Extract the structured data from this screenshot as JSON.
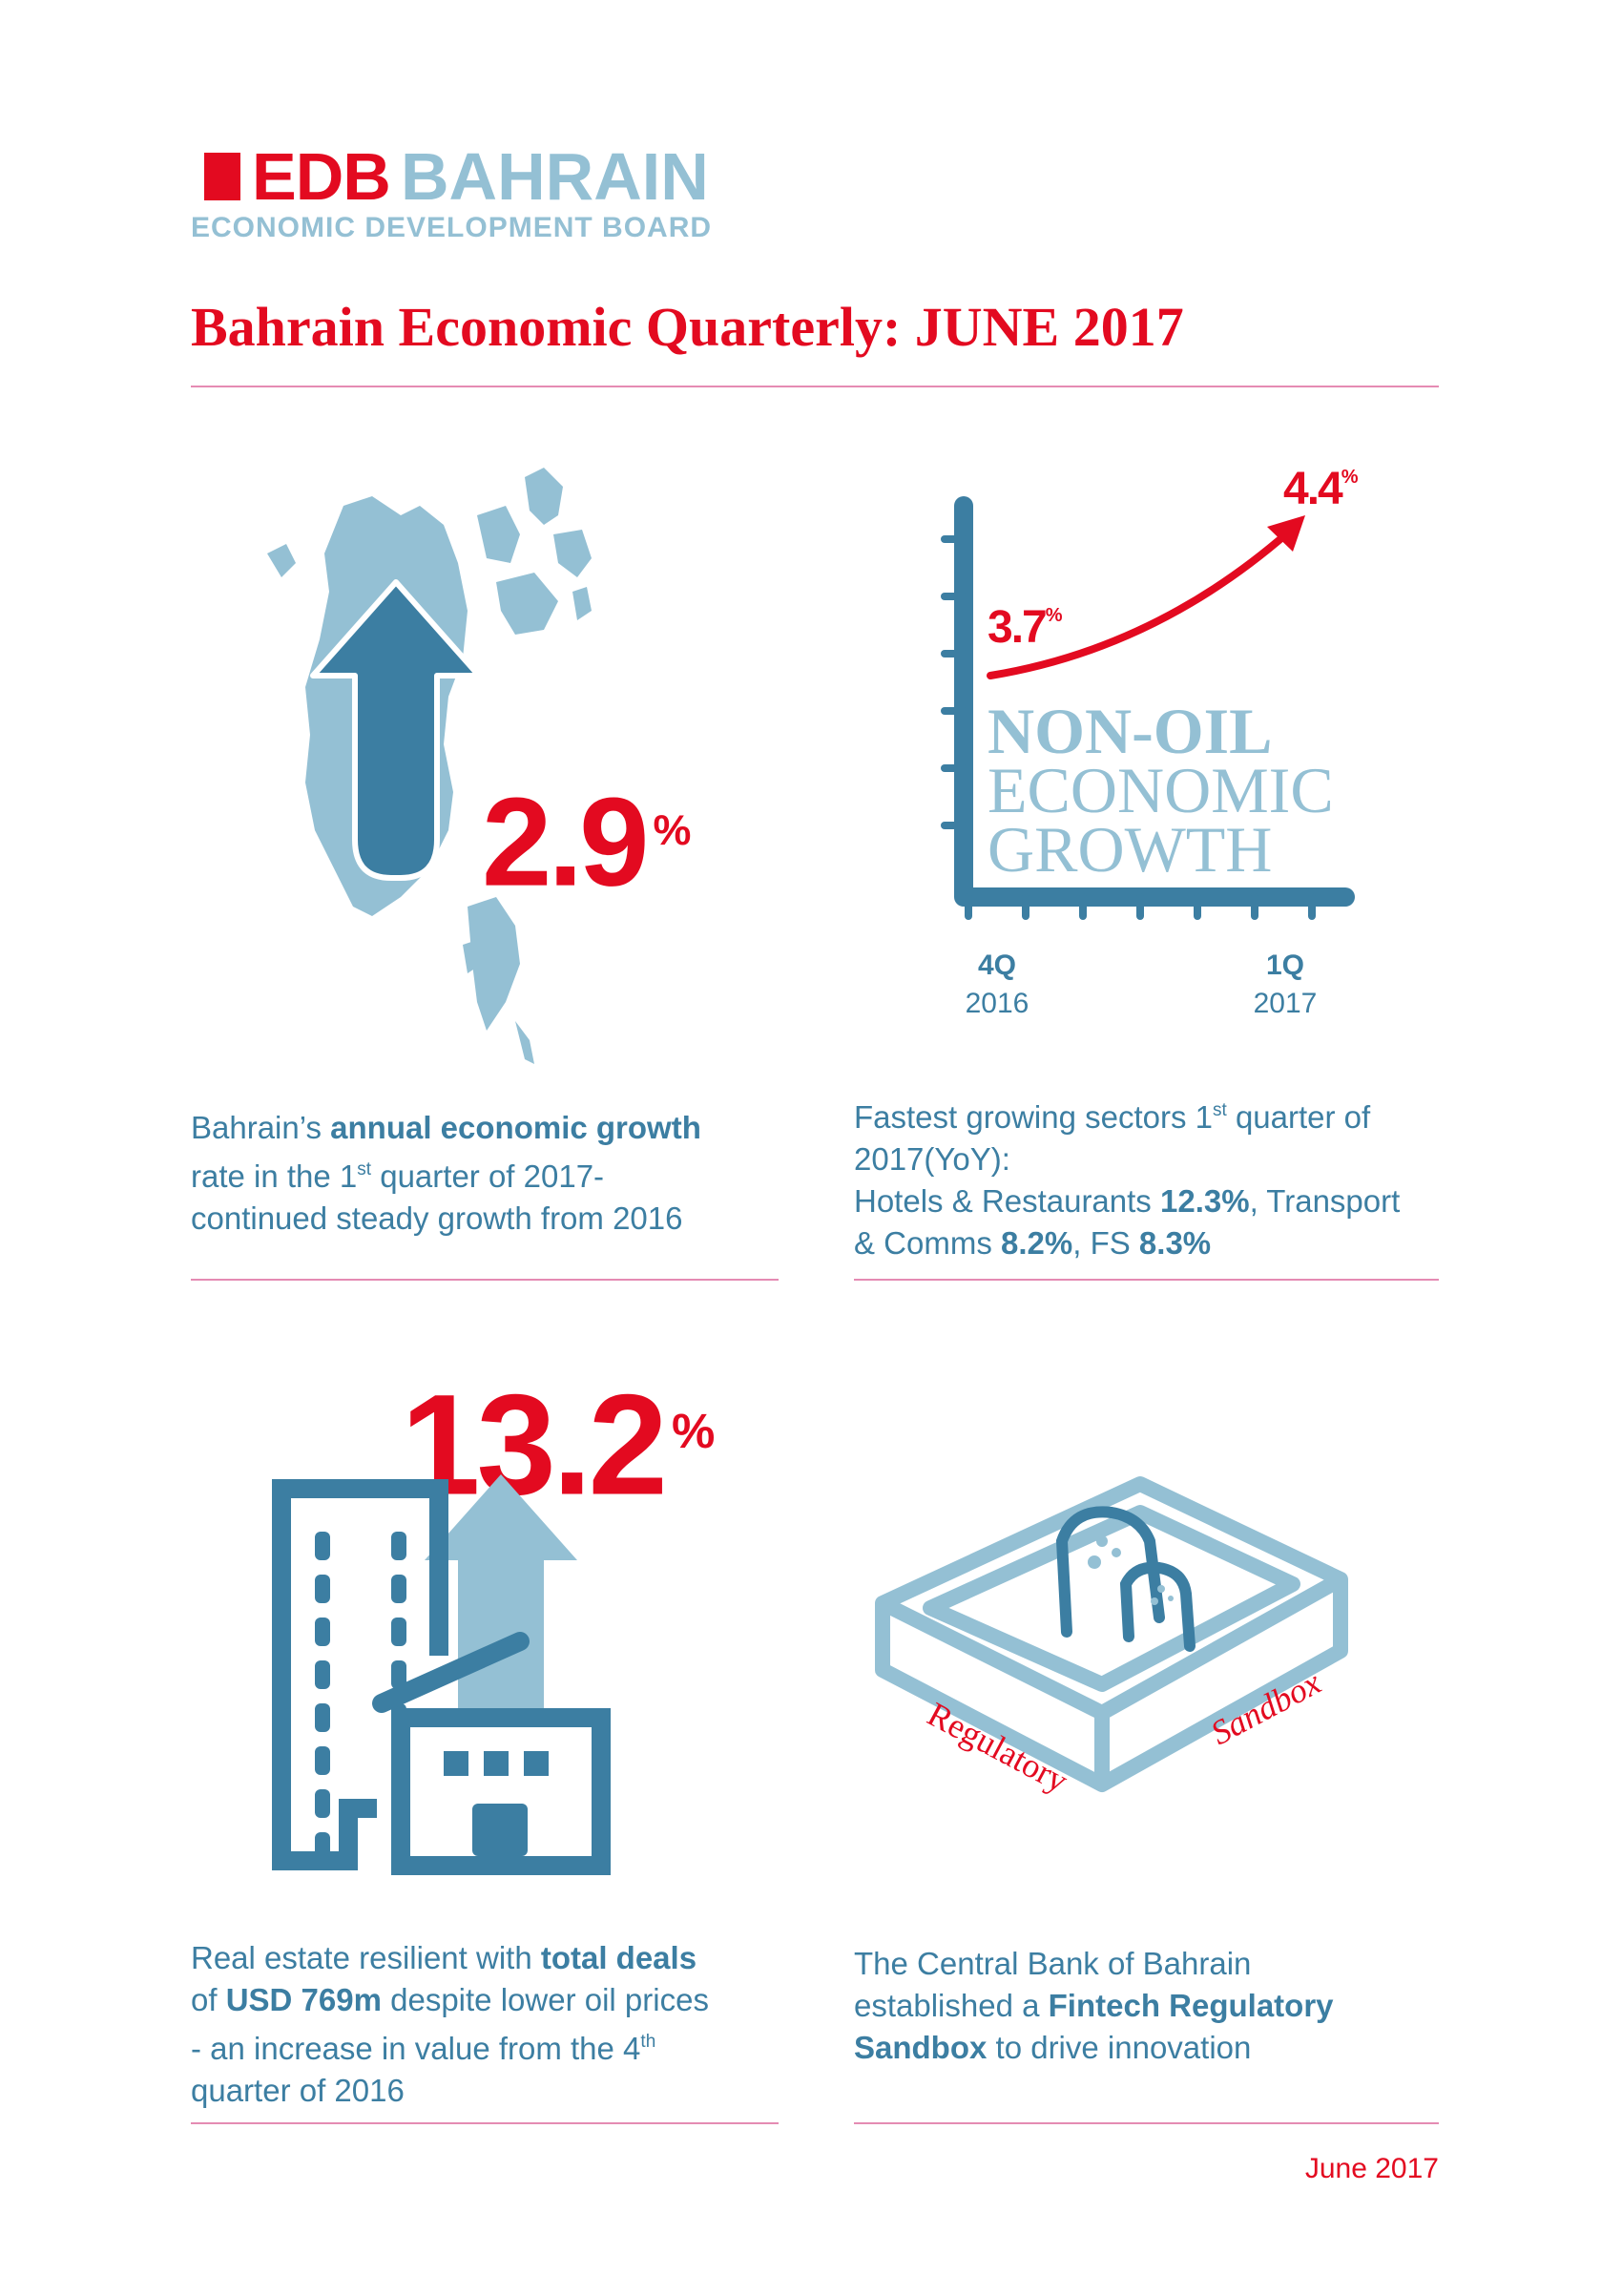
{
  "logo": {
    "edb": "EDB",
    "bahrain": "BAHRAIN",
    "subtitle": "ECONOMIC DEVELOPMENT BOARD",
    "icon": "bahrain-flag-serrated-icon"
  },
  "title": "Bahrain Economic Quarterly: JUNE 2017",
  "colors": {
    "red": "#e30a20",
    "blue": "#3c7ea2",
    "light_blue": "#94c0d4",
    "rule_pink": "#e58bb3"
  },
  "panel_growth": {
    "value": "2.9",
    "unit": "%",
    "icon": "bahrain-map-up-arrow-icon",
    "desc_pre": "Bahrain’s ",
    "desc_bold": "annual economic growth",
    "desc_line2_pre": "rate in the 1",
    "desc_sup": "st",
    "desc_line2_post": " quarter of 2017-",
    "desc_line3": "continued steady growth from 2016"
  },
  "panel_nonoil": {
    "label_bold": "NON-OIL",
    "label_line2": "ECONOMIC",
    "label_line3": "GROWTH",
    "start_value": "3.7",
    "end_value": "4.4",
    "unit": "%",
    "x_start_q": "4Q",
    "x_start_year": "2016",
    "x_end_q": "1Q",
    "x_end_year": "2017",
    "desc_line1_pre": "Fastest growing sectors 1",
    "desc_sup": "st",
    "desc_line1_post": " quarter of",
    "desc_line2": "2017(YoY):",
    "sector1_name": "Hotels & Restaurants ",
    "sector1_value": "12.3%",
    "sector2_name": ", Transport",
    "sector2_name_cont": "& Comms ",
    "sector2_value": "8.2%",
    "sector3_name": ", FS ",
    "sector3_value": "8.3%"
  },
  "panel_realestate": {
    "value": "13.2",
    "unit": "%",
    "icon": "buildings-up-arrow-icon",
    "desc_pre": "Real estate resilient with ",
    "desc_bold1": "total deals",
    "desc_line2_pre": "of ",
    "desc_bold2": "USD 769m",
    "desc_line2_post": " despite lower oil prices",
    "desc_line3": "- an increase in value from the 4",
    "desc_sup": "th",
    "desc_line4": "quarter of 2016"
  },
  "panel_sandbox": {
    "icon": "sandbox-icon",
    "box_label1": "Regulatory",
    "box_label2": "Sandbox",
    "desc_line1": "The Central Bank of Bahrain",
    "desc_line2_pre": "established a ",
    "desc_bold1": "Fintech Regulatory",
    "desc_bold2": "Sandbox",
    "desc_line3_post": " to drive innovation"
  },
  "footer": "June 2017"
}
